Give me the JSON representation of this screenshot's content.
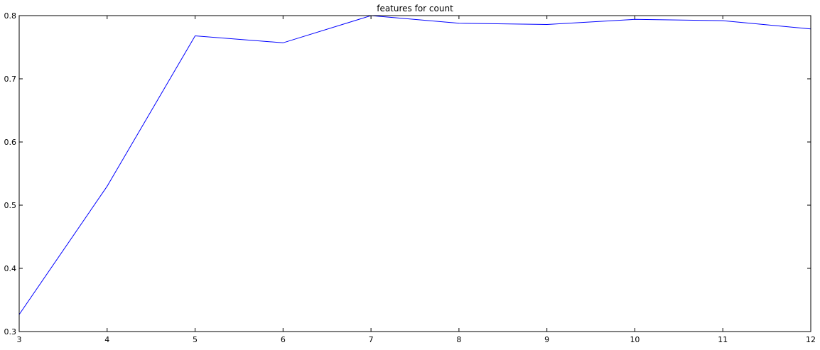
{
  "chart_data": {
    "type": "line",
    "title": "features for count",
    "xlabel": "",
    "ylabel": "",
    "xlim": [
      3,
      12
    ],
    "ylim": [
      0.3,
      0.8
    ],
    "x_ticks": [
      3,
      4,
      5,
      6,
      7,
      8,
      9,
      10,
      11,
      12
    ],
    "y_ticks": [
      "0.3",
      "0.4",
      "0.5",
      "0.6",
      "0.7",
      "0.8"
    ],
    "grid": false,
    "series": [
      {
        "color": "#0000ff",
        "x": [
          3,
          4,
          5,
          6,
          7,
          8,
          9,
          10,
          11,
          12
        ],
        "y": [
          0.327,
          0.53,
          0.768,
          0.757,
          0.8,
          0.788,
          0.786,
          0.794,
          0.792,
          0.779
        ]
      }
    ]
  }
}
